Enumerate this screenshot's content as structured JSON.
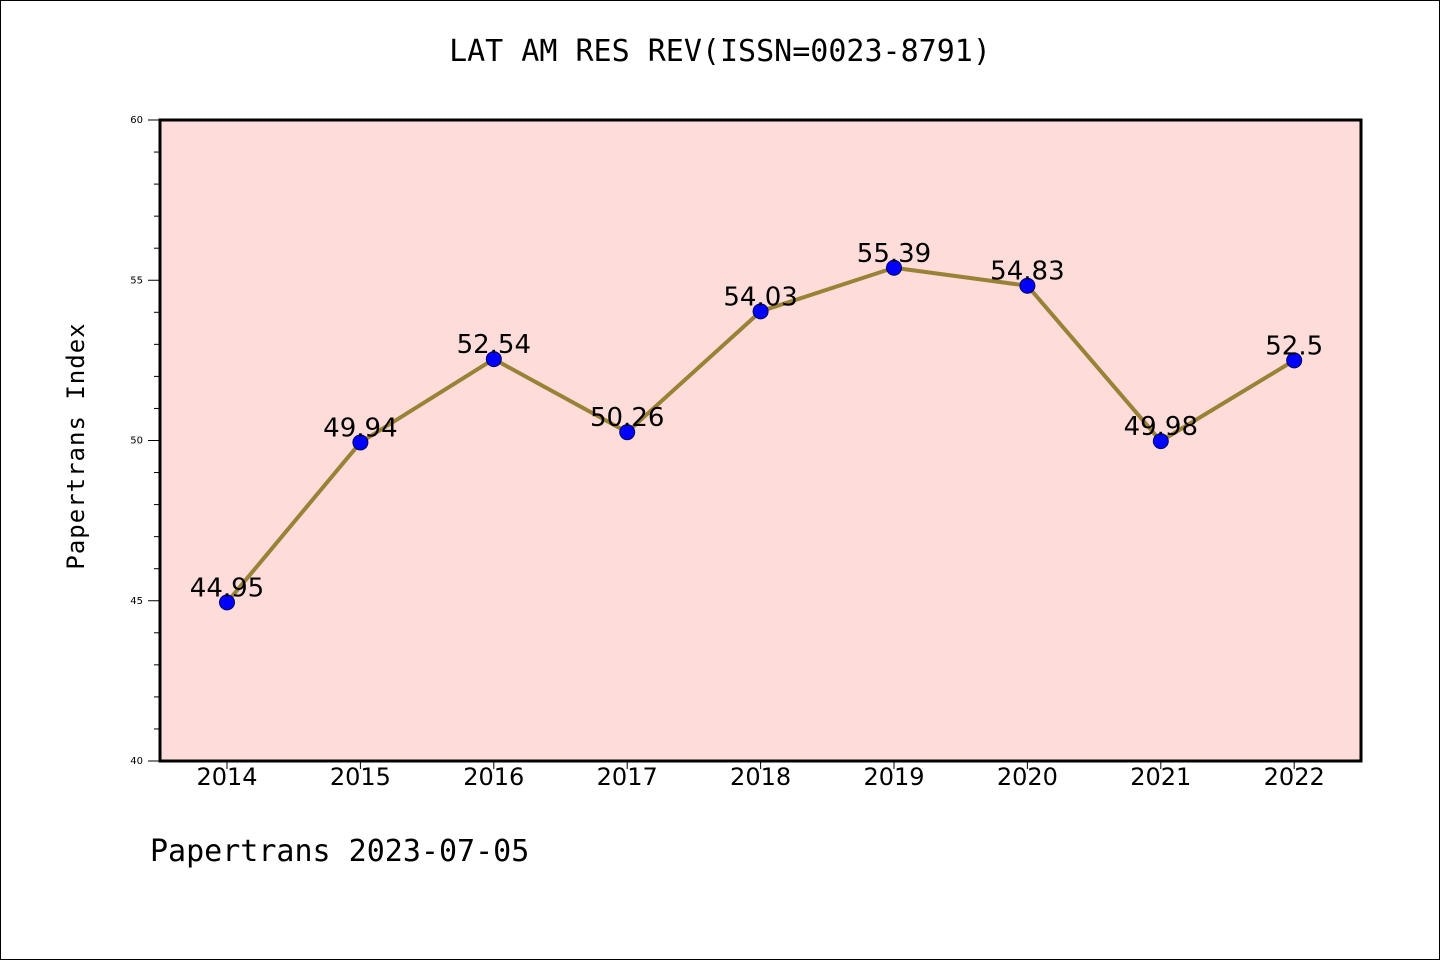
{
  "chart_data": {
    "type": "line",
    "title": "LAT AM RES REV(ISSN=0023-8791)",
    "xlabel": "",
    "ylabel": "Papertrans Index",
    "categories": [
      "2014",
      "2015",
      "2016",
      "2017",
      "2018",
      "2019",
      "2020",
      "2021",
      "2022"
    ],
    "values": [
      44.95,
      49.94,
      52.54,
      50.26,
      54.03,
      55.39,
      54.83,
      49.98,
      52.5
    ],
    "data_labels": [
      "44.95",
      "49.94",
      "52.54",
      "50.26",
      "54.03",
      "55.39",
      "54.83",
      "49.98",
      "52.5"
    ],
    "ylim": [
      40,
      60
    ],
    "yticks": [
      40,
      45,
      50,
      55,
      60
    ],
    "grid": false,
    "legend": "none",
    "colors": {
      "plot_background": "#fddcd9",
      "line": "#998236",
      "marker": "#0000ff",
      "marker_edge": "#00005a",
      "axes": "#000000"
    }
  },
  "footer": "Papertrans 2023-07-05"
}
